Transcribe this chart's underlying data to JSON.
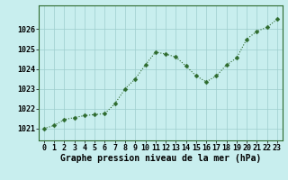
{
  "x": [
    0,
    1,
    2,
    3,
    4,
    5,
    6,
    7,
    8,
    9,
    10,
    11,
    12,
    13,
    14,
    15,
    16,
    17,
    18,
    19,
    20,
    21,
    22,
    23
  ],
  "y": [
    1021.0,
    1021.15,
    1021.45,
    1021.55,
    1021.65,
    1021.7,
    1021.75,
    1022.25,
    1023.0,
    1023.5,
    1024.2,
    1024.85,
    1024.75,
    1024.6,
    1024.15,
    1023.65,
    1023.35,
    1023.65,
    1024.2,
    1024.55,
    1025.5,
    1025.9,
    1026.1,
    1026.5
  ],
  "line_color": "#2d6a2d",
  "marker": "D",
  "marker_size": 2.5,
  "bg_color": "#c8eeee",
  "grid_color": "#9ecece",
  "xlabel": "Graphe pression niveau de la mer (hPa)",
  "xlabel_fontsize": 7,
  "tick_fontsize": 6,
  "ylim": [
    1020.4,
    1027.2
  ],
  "yticks": [
    1021,
    1022,
    1023,
    1024,
    1025,
    1026
  ],
  "xtick_labels": [
    "0",
    "1",
    "2",
    "3",
    "4",
    "5",
    "6",
    "7",
    "8",
    "9",
    "10",
    "11",
    "12",
    "13",
    "14",
    "15",
    "16",
    "17",
    "18",
    "19",
    "20",
    "21",
    "22",
    "23"
  ]
}
